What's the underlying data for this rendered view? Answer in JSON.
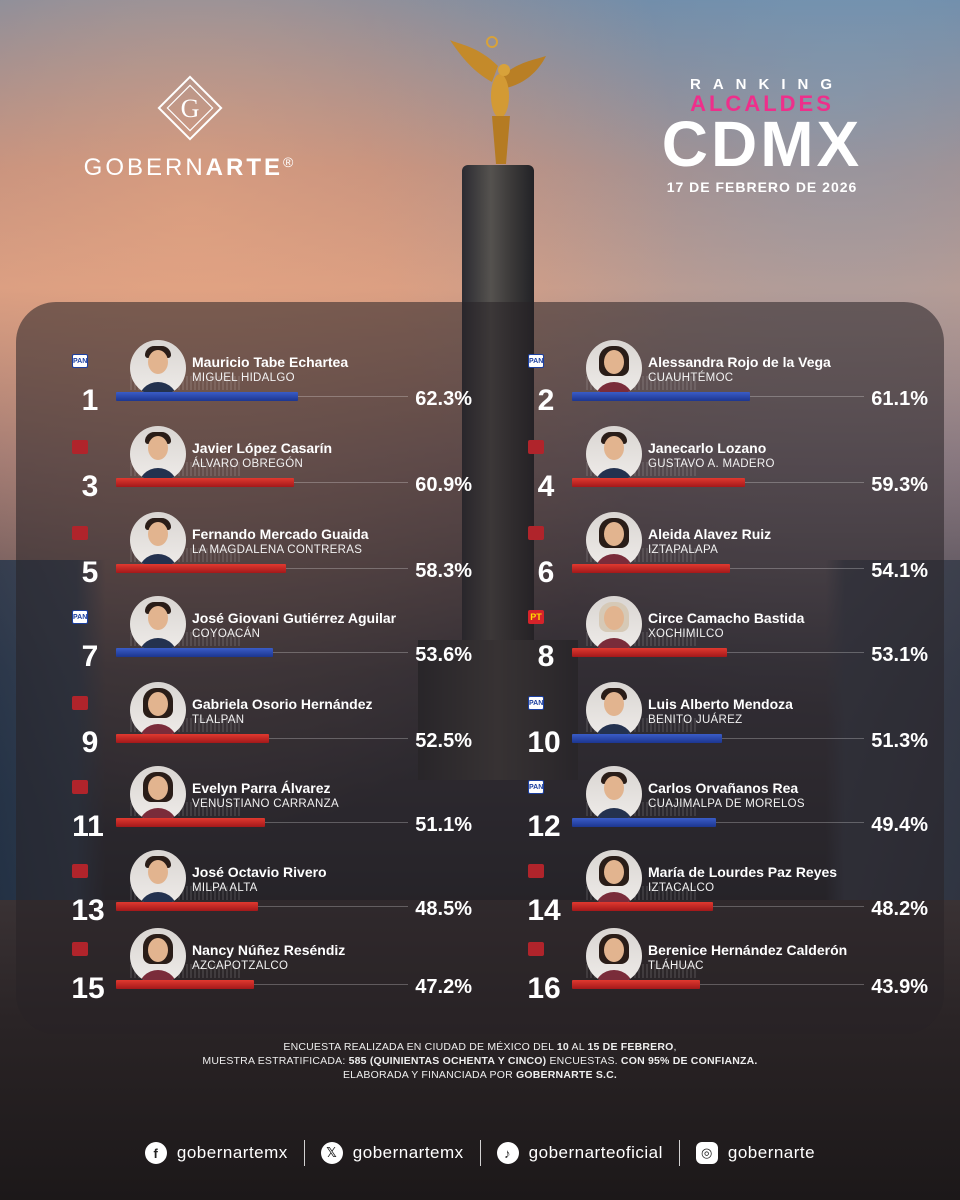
{
  "brand": {
    "name_prefix": "GOBERN",
    "name_bold": "ARTE",
    "name_suffix": "®",
    "logo_letter": "G"
  },
  "title": {
    "line1": "RANKING",
    "line2": "ALCALDES",
    "line3": "CDMX",
    "date": "17 DE FEBRERO DE 2026"
  },
  "colors": {
    "accent_pink": "#ee2f8b",
    "pan_blue": "#1c3690",
    "morena_red": "#a3181a"
  },
  "ranking": [
    {
      "rank": "1",
      "name": "Mauricio Tabe Echartea",
      "district": "MIGUEL HIDALGO",
      "percent": "62.3%",
      "value": 62.3,
      "party": "PAN",
      "party_label": "PAN",
      "bar_color": "blue",
      "gender": "m"
    },
    {
      "rank": "2",
      "name": "Alessandra Rojo de la Vega",
      "district": "CUAUHTÉMOC",
      "percent": "61.1%",
      "value": 61.1,
      "party": "PAN",
      "party_label": "PAN",
      "bar_color": "blue",
      "gender": "w"
    },
    {
      "rank": "3",
      "name": "Javier López Casarín",
      "district": "ÁLVARO OBREGÓN",
      "percent": "60.9%",
      "value": 60.9,
      "party": "MORENA",
      "party_label": "",
      "bar_color": "red",
      "gender": "m"
    },
    {
      "rank": "4",
      "name": "Janecarlo Lozano",
      "district": "GUSTAVO A. MADERO",
      "percent": "59.3%",
      "value": 59.3,
      "party": "MORENA",
      "party_label": "",
      "bar_color": "red",
      "gender": "m"
    },
    {
      "rank": "5",
      "name": "Fernando Mercado Guaida",
      "district": "LA MAGDALENA CONTRERAS",
      "percent": "58.3%",
      "value": 58.3,
      "party": "MORENA",
      "party_label": "",
      "bar_color": "red",
      "gender": "m"
    },
    {
      "rank": "6",
      "name": "Aleida Alavez Ruiz",
      "district": "IZTAPALAPA",
      "percent": "54.1%",
      "value": 54.1,
      "party": "MORENA",
      "party_label": "",
      "bar_color": "red",
      "gender": "w"
    },
    {
      "rank": "7",
      "name": "José Giovani Gutiérrez Aguilar",
      "district": "COYOACÁN",
      "percent": "53.6%",
      "value": 53.6,
      "party": "PAN",
      "party_label": "PAN",
      "bar_color": "blue",
      "gender": "m"
    },
    {
      "rank": "8",
      "name": "Circe Camacho Bastida",
      "district": "XOCHIMILCO",
      "percent": "53.1%",
      "value": 53.1,
      "party": "PT",
      "party_label": "PT",
      "bar_color": "red",
      "gender": "w",
      "blonde": true
    },
    {
      "rank": "9",
      "name": "Gabriela Osorio Hernández",
      "district": "TLALPAN",
      "percent": "52.5%",
      "value": 52.5,
      "party": "MORENA",
      "party_label": "",
      "bar_color": "red",
      "gender": "w"
    },
    {
      "rank": "10",
      "name": "Luis Alberto Mendoza",
      "district": "BENITO JUÁREZ",
      "percent": "51.3%",
      "value": 51.3,
      "party": "PAN",
      "party_label": "PAN",
      "bar_color": "blue",
      "gender": "m"
    },
    {
      "rank": "11",
      "name": "Evelyn Parra Álvarez",
      "district": "VENUSTIANO CARRANZA",
      "percent": "51.1%",
      "value": 51.1,
      "party": "MORENA",
      "party_label": "",
      "bar_color": "red",
      "gender": "w"
    },
    {
      "rank": "12",
      "name": "Carlos Orvañanos Rea",
      "district": "CUAJIMALPA DE MORELOS",
      "percent": "49.4%",
      "value": 49.4,
      "party": "PAN",
      "party_label": "PAN",
      "bar_color": "blue",
      "gender": "m"
    },
    {
      "rank": "13",
      "name": "José Octavio Rivero",
      "district": "MILPA ALTA",
      "percent": "48.5%",
      "value": 48.5,
      "party": "MORENA",
      "party_label": "",
      "bar_color": "red",
      "gender": "m"
    },
    {
      "rank": "14",
      "name": "María de Lourdes Paz Reyes",
      "district": "IZTACALCO",
      "percent": "48.2%",
      "value": 48.2,
      "party": "MORENA",
      "party_label": "",
      "bar_color": "red",
      "gender": "w"
    },
    {
      "rank": "15",
      "name": "Nancy Núñez Reséndiz",
      "district": "AZCAPOTZALCO",
      "percent": "47.2%",
      "value": 47.2,
      "party": "MORENA",
      "party_label": "",
      "bar_color": "red",
      "gender": "w"
    },
    {
      "rank": "16",
      "name": "Berenice Hernández Calderón",
      "district": "TLÁHUAC",
      "percent": "43.9%",
      "value": 43.9,
      "party": "MORENA",
      "party_label": "",
      "bar_color": "red",
      "gender": "w"
    }
  ],
  "methodology": {
    "line1_a": "ENCUESTA REALIZADA EN CIUDAD DE MÉXICO DEL ",
    "line1_b": "10",
    "line1_c": " AL ",
    "line1_d": "15 DE FEBRERO",
    "line1_e": ",",
    "line2_a": "MUESTRA ESTRATIFICADA: ",
    "line2_b": "585 (QUINIENTAS OCHENTA Y CINCO)",
    "line2_c": " ENCUESTAS. ",
    "line2_d": "CON 95% DE CONFIANZA.",
    "line3_a": "ELABORADA Y FINANCIADA POR ",
    "line3_b": "GOBERNARTE S.C."
  },
  "socials": [
    {
      "icon": "facebook-icon",
      "glyph": "f",
      "handle": "gobernartemx"
    },
    {
      "icon": "x-icon",
      "glyph": "𝕏",
      "handle": "gobernartemx"
    },
    {
      "icon": "tiktok-icon",
      "glyph": "♪",
      "handle": "gobernarteoficial"
    },
    {
      "icon": "instagram-icon",
      "glyph": "◎",
      "handle": "gobernarte"
    }
  ]
}
